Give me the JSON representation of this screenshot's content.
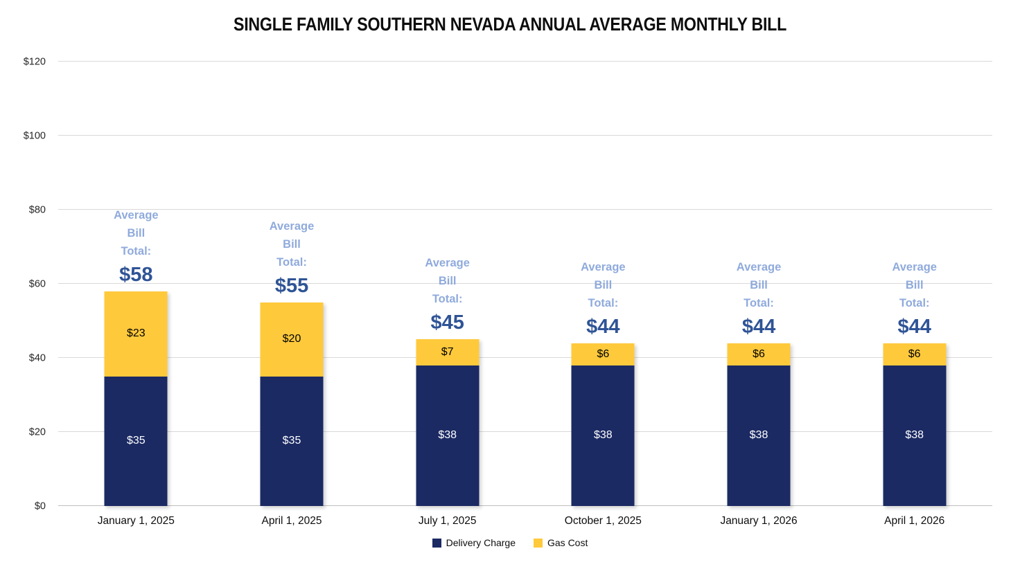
{
  "chart_data": {
    "type": "bar",
    "stacked": true,
    "title": "SINGLE FAMILY SOUTHERN NEVADA ANNUAL AVERAGE MONTHLY BILL",
    "categories": [
      "January 1, 2025",
      "April 1, 2025",
      "July 1, 2025",
      "October 1, 2025",
      "January 1, 2026",
      "April 1, 2026"
    ],
    "series": [
      {
        "name": "Delivery Charge",
        "color": "#1b2a63",
        "label_color": "#ffffff",
        "values": [
          35,
          35,
          38,
          38,
          38,
          38
        ],
        "data_labels": [
          "$35",
          "$35",
          "$38",
          "$38",
          "$38",
          "$38"
        ]
      },
      {
        "name": "Gas Cost",
        "color": "#ffc93c",
        "label_color": "#000000",
        "values": [
          23,
          20,
          7,
          6,
          6,
          6
        ],
        "data_labels": [
          "$23",
          "$20",
          "$7",
          "$6",
          "$6",
          "$6"
        ]
      }
    ],
    "totals": {
      "annotation_lines": [
        "Average",
        "Bill",
        "Total:"
      ],
      "values": [
        58,
        55,
        45,
        44,
        44,
        44
      ],
      "labels": [
        "$58",
        "$55",
        "$45",
        "$44",
        "$44",
        "$44"
      ],
      "line_color": "#8faadc",
      "value_color": "#2f5496"
    },
    "y_axis": {
      "min": 0,
      "max": 120,
      "tick_step": 20,
      "tick_labels": [
        "$0",
        "$20",
        "$40",
        "$60",
        "$80",
        "$100",
        "$120"
      ]
    },
    "grid": true,
    "gridline_color": "#d9d9d9",
    "legend_position": "bottom",
    "legend_items": [
      {
        "label": "Delivery Charge",
        "color": "#1b2a63"
      },
      {
        "label": "Gas Cost",
        "color": "#ffc93c"
      }
    ]
  }
}
